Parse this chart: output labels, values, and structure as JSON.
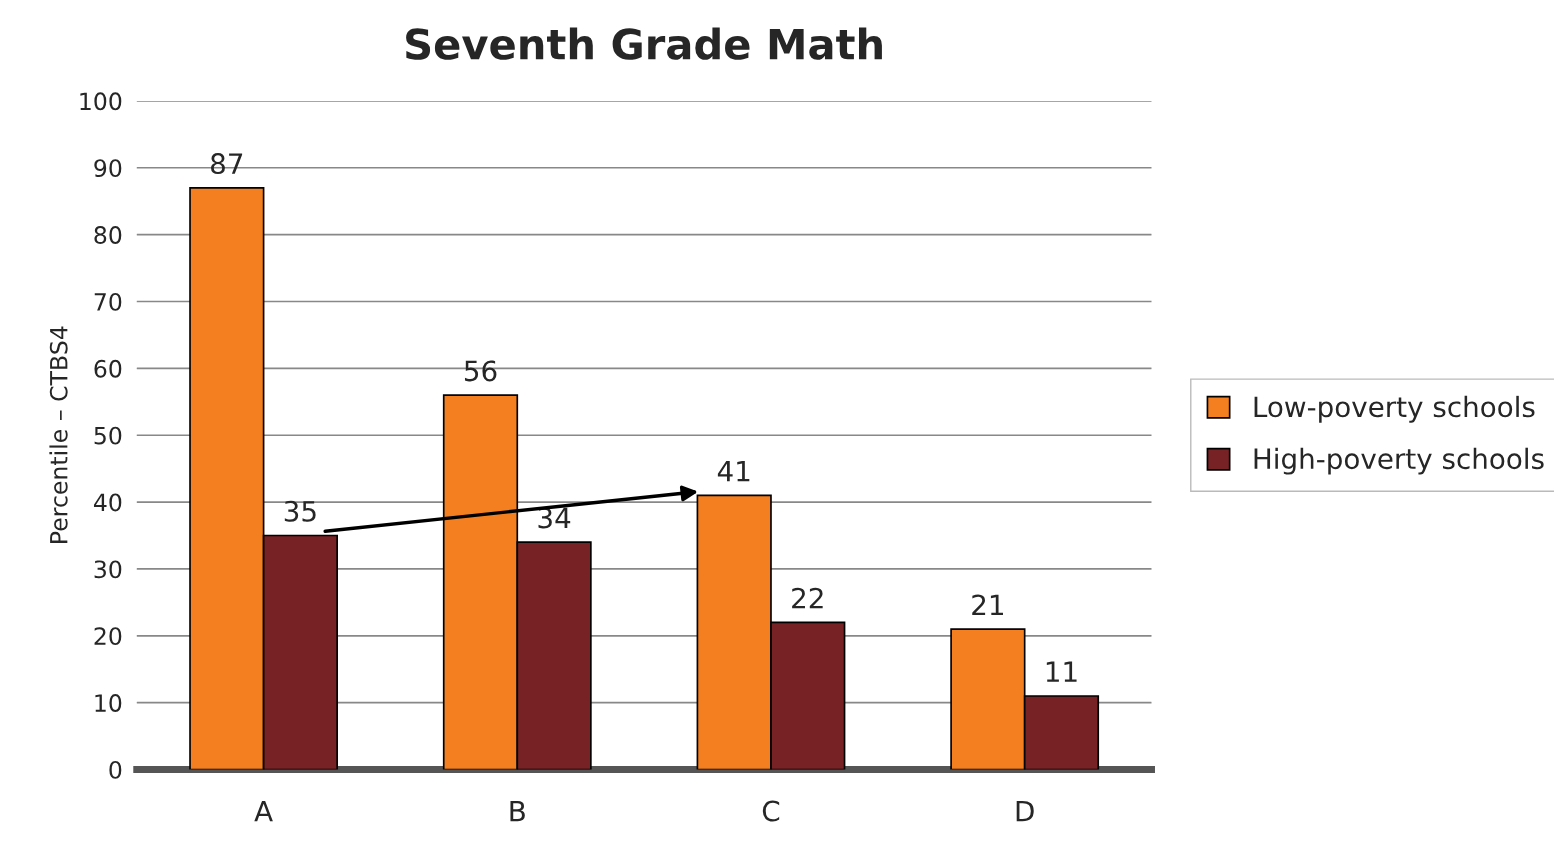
{
  "chart_data": {
    "type": "bar",
    "title": "Seventh Grade Math",
    "ylabel": "Percentile – CTBS4",
    "categories": [
      "A",
      "B",
      "C",
      "D"
    ],
    "series": [
      {
        "name": "Low-poverty schools",
        "color": "#f47f20",
        "values": [
          87,
          56,
          41,
          21
        ]
      },
      {
        "name": "High-poverty schools",
        "color": "#772224",
        "values": [
          35,
          34,
          22,
          11
        ]
      }
    ],
    "ylim": [
      0,
      100
    ],
    "yticks": [
      0,
      10,
      20,
      30,
      40,
      50,
      60,
      70,
      80,
      90,
      100
    ],
    "grid": "y",
    "legend": "right",
    "data_labels": true
  }
}
